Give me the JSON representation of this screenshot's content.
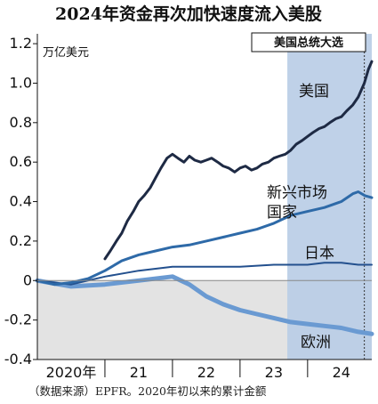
{
  "chart_data": {
    "type": "line",
    "title": "2024年资金再次加快速度流入美股",
    "unit_label": "万亿美元",
    "source_note": "（数据来源）EPFR。2020年初以来的累计金额",
    "annotation": "美国总统大选",
    "ylim": [
      -0.4,
      1.25
    ],
    "y_ticks": [
      "1.2",
      "1.0",
      "0.8",
      "0.6",
      "0.4",
      "0.2",
      "0",
      "-0.2",
      "-0.4"
    ],
    "x_ticks": [
      "2020年",
      "21",
      "22",
      "23",
      "24"
    ],
    "xlim": [
      2020.0,
      2024.95
    ],
    "grid": false,
    "highlight_period": [
      2023.7,
      2024.95
    ],
    "election_marker": 2024.84,
    "colors": {
      "us": "#1e2a44",
      "emerging": "#2e6aa8",
      "japan": "#23508e",
      "europe": "#6a9ad2",
      "highlight": "#b8cce6",
      "negative_zone": "#e3e3e3"
    },
    "series": [
      {
        "name": "美国",
        "key": "us",
        "points": [
          [
            2021.0,
            0.11
          ],
          [
            2021.08,
            0.15
          ],
          [
            2021.17,
            0.2
          ],
          [
            2021.25,
            0.24
          ],
          [
            2021.33,
            0.3
          ],
          [
            2021.42,
            0.35
          ],
          [
            2021.5,
            0.4
          ],
          [
            2021.58,
            0.43
          ],
          [
            2021.67,
            0.47
          ],
          [
            2021.75,
            0.52
          ],
          [
            2021.83,
            0.57
          ],
          [
            2021.92,
            0.62
          ],
          [
            2022.0,
            0.64
          ],
          [
            2022.08,
            0.62
          ],
          [
            2022.17,
            0.6
          ],
          [
            2022.25,
            0.63
          ],
          [
            2022.33,
            0.61
          ],
          [
            2022.42,
            0.6
          ],
          [
            2022.5,
            0.61
          ],
          [
            2022.58,
            0.62
          ],
          [
            2022.67,
            0.6
          ],
          [
            2022.75,
            0.58
          ],
          [
            2022.83,
            0.57
          ],
          [
            2022.92,
            0.55
          ],
          [
            2023.0,
            0.57
          ],
          [
            2023.08,
            0.58
          ],
          [
            2023.17,
            0.56
          ],
          [
            2023.25,
            0.57
          ],
          [
            2023.33,
            0.59
          ],
          [
            2023.42,
            0.6
          ],
          [
            2023.5,
            0.62
          ],
          [
            2023.58,
            0.63
          ],
          [
            2023.67,
            0.64
          ],
          [
            2023.75,
            0.66
          ],
          [
            2023.83,
            0.69
          ],
          [
            2023.92,
            0.71
          ],
          [
            2024.0,
            0.73
          ],
          [
            2024.08,
            0.75
          ],
          [
            2024.17,
            0.77
          ],
          [
            2024.25,
            0.78
          ],
          [
            2024.33,
            0.8
          ],
          [
            2024.42,
            0.82
          ],
          [
            2024.5,
            0.83
          ],
          [
            2024.58,
            0.86
          ],
          [
            2024.67,
            0.89
          ],
          [
            2024.75,
            0.93
          ],
          [
            2024.84,
            1.0
          ],
          [
            2024.9,
            1.07
          ],
          [
            2024.95,
            1.11
          ]
        ]
      },
      {
        "name": "新兴市场国家",
        "key": "emerging",
        "points": [
          [
            2020.0,
            0.0
          ],
          [
            2020.25,
            -0.02
          ],
          [
            2020.5,
            -0.01
          ],
          [
            2020.75,
            0.01
          ],
          [
            2021.0,
            0.05
          ],
          [
            2021.25,
            0.1
          ],
          [
            2021.5,
            0.13
          ],
          [
            2021.75,
            0.15
          ],
          [
            2022.0,
            0.17
          ],
          [
            2022.25,
            0.18
          ],
          [
            2022.5,
            0.2
          ],
          [
            2022.75,
            0.22
          ],
          [
            2023.0,
            0.24
          ],
          [
            2023.25,
            0.26
          ],
          [
            2023.5,
            0.29
          ],
          [
            2023.75,
            0.33
          ],
          [
            2024.0,
            0.35
          ],
          [
            2024.25,
            0.37
          ],
          [
            2024.5,
            0.4
          ],
          [
            2024.67,
            0.44
          ],
          [
            2024.75,
            0.45
          ],
          [
            2024.85,
            0.43
          ],
          [
            2024.95,
            0.42
          ]
        ]
      },
      {
        "name": "日本",
        "key": "japan",
        "points": [
          [
            2020.0,
            0.0
          ],
          [
            2020.5,
            -0.02
          ],
          [
            2021.0,
            0.02
          ],
          [
            2021.5,
            0.05
          ],
          [
            2022.0,
            0.07
          ],
          [
            2022.5,
            0.07
          ],
          [
            2023.0,
            0.07
          ],
          [
            2023.5,
            0.08
          ],
          [
            2024.0,
            0.08
          ],
          [
            2024.25,
            0.09
          ],
          [
            2024.5,
            0.09
          ],
          [
            2024.75,
            0.08
          ],
          [
            2024.95,
            0.08
          ]
        ]
      },
      {
        "name": "欧洲",
        "key": "europe",
        "points": [
          [
            2020.0,
            0.0
          ],
          [
            2020.5,
            -0.03
          ],
          [
            2021.0,
            -0.02
          ],
          [
            2021.5,
            0.0
          ],
          [
            2022.0,
            0.02
          ],
          [
            2022.25,
            -0.02
          ],
          [
            2022.5,
            -0.08
          ],
          [
            2022.75,
            -0.12
          ],
          [
            2023.0,
            -0.15
          ],
          [
            2023.25,
            -0.17
          ],
          [
            2023.5,
            -0.19
          ],
          [
            2023.75,
            -0.21
          ],
          [
            2024.0,
            -0.22
          ],
          [
            2024.25,
            -0.23
          ],
          [
            2024.5,
            -0.24
          ],
          [
            2024.75,
            -0.26
          ],
          [
            2024.95,
            -0.27
          ]
        ]
      }
    ],
    "series_labels": [
      {
        "key": "us",
        "lines": [
          "美国"
        ]
      },
      {
        "key": "emerging",
        "lines": [
          "新兴市场",
          "国家"
        ]
      },
      {
        "key": "japan",
        "lines": [
          "日本"
        ]
      },
      {
        "key": "europe",
        "lines": [
          "欧洲"
        ]
      }
    ]
  }
}
